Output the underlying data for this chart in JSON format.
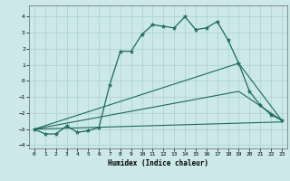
{
  "xlabel": "Humidex (Indice chaleur)",
  "bg_color": "#cce8e8",
  "grid_color": "#aad0d0",
  "line_color": "#1a6b5a",
  "xlim": [
    -0.5,
    23.5
  ],
  "ylim": [
    -4.2,
    4.7
  ],
  "xticks": [
    0,
    1,
    2,
    3,
    4,
    5,
    6,
    7,
    8,
    9,
    10,
    11,
    12,
    13,
    14,
    15,
    16,
    17,
    18,
    19,
    20,
    21,
    22,
    23
  ],
  "yticks": [
    -4,
    -3,
    -2,
    -1,
    0,
    1,
    2,
    3,
    4
  ],
  "main_series": {
    "x": [
      0,
      1,
      2,
      3,
      4,
      5,
      6,
      7,
      8,
      9,
      10,
      11,
      12,
      13,
      14,
      15,
      16,
      17,
      18,
      19,
      20,
      21,
      22,
      23
    ],
    "y": [
      -3.0,
      -3.3,
      -3.3,
      -2.8,
      -3.2,
      -3.1,
      -2.9,
      -0.25,
      1.85,
      1.85,
      2.9,
      3.5,
      3.4,
      3.3,
      4.0,
      3.2,
      3.3,
      3.7,
      2.55,
      1.1,
      -0.65,
      -1.5,
      -2.1,
      -2.45
    ]
  },
  "aux_lines": [
    {
      "x": [
        0,
        23
      ],
      "y": [
        -3.0,
        -2.55
      ]
    },
    {
      "x": [
        0,
        19,
        23
      ],
      "y": [
        -3.0,
        -0.65,
        -2.45
      ]
    },
    {
      "x": [
        0,
        19,
        23
      ],
      "y": [
        -3.0,
        1.1,
        -2.45
      ]
    }
  ]
}
